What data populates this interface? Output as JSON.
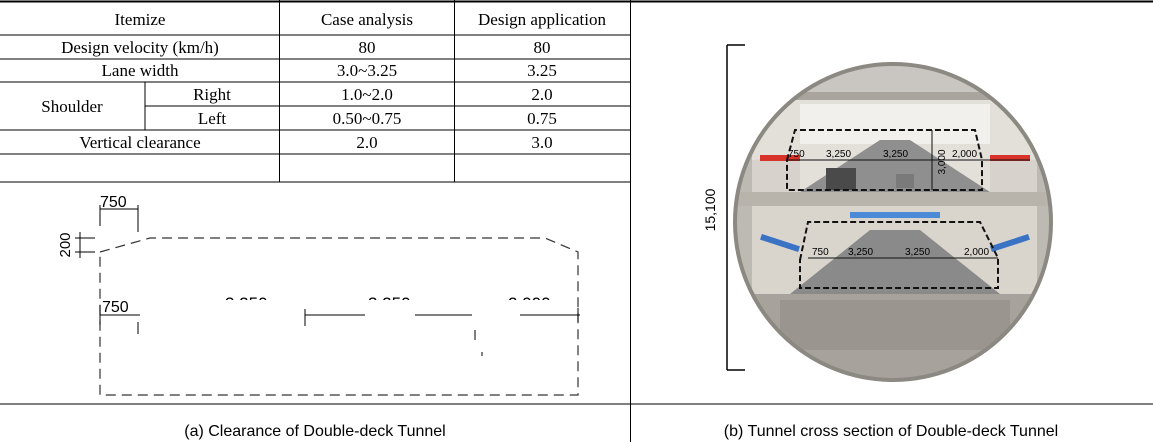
{
  "table": {
    "headers": [
      "Itemize",
      "Case analysis",
      "Design application"
    ],
    "rows": {
      "velocity": {
        "item": "Design velocity (km/h)",
        "case": "80",
        "design": "80"
      },
      "lane": {
        "item": "Lane width",
        "case": "3.0~3.25",
        "design": "3.25"
      },
      "shoulder": {
        "item": "Shoulder",
        "right": {
          "side": "Right",
          "case": "1.0~2.0",
          "design": "2.0"
        },
        "left": {
          "side": "Left",
          "case": "0.50~0.75",
          "design": "0.75"
        }
      },
      "vertical": {
        "item": "Vertical clearance",
        "case": "2.0",
        "design": "3.0"
      }
    }
  },
  "clearance_drawing": {
    "dim_top_left": "750",
    "dim_top_height": "200",
    "dim_lower_left": "750",
    "dim_lane1": "3,250",
    "dim_lane2": "3,250",
    "dim_right": "2,000"
  },
  "tunnel_section": {
    "total_height": "15,100",
    "upper_deck": {
      "dims": [
        "750",
        "3,250",
        "3,250",
        "2,000"
      ],
      "clearance": "3,000"
    },
    "lower_deck": {
      "dims": [
        "750",
        "3,250",
        "3,250",
        "2,000"
      ]
    }
  },
  "captions": {
    "left": "(a) Clearance of Double-deck Tunnel",
    "right": "(b) Tunnel cross section of Double-deck Tunnel"
  }
}
